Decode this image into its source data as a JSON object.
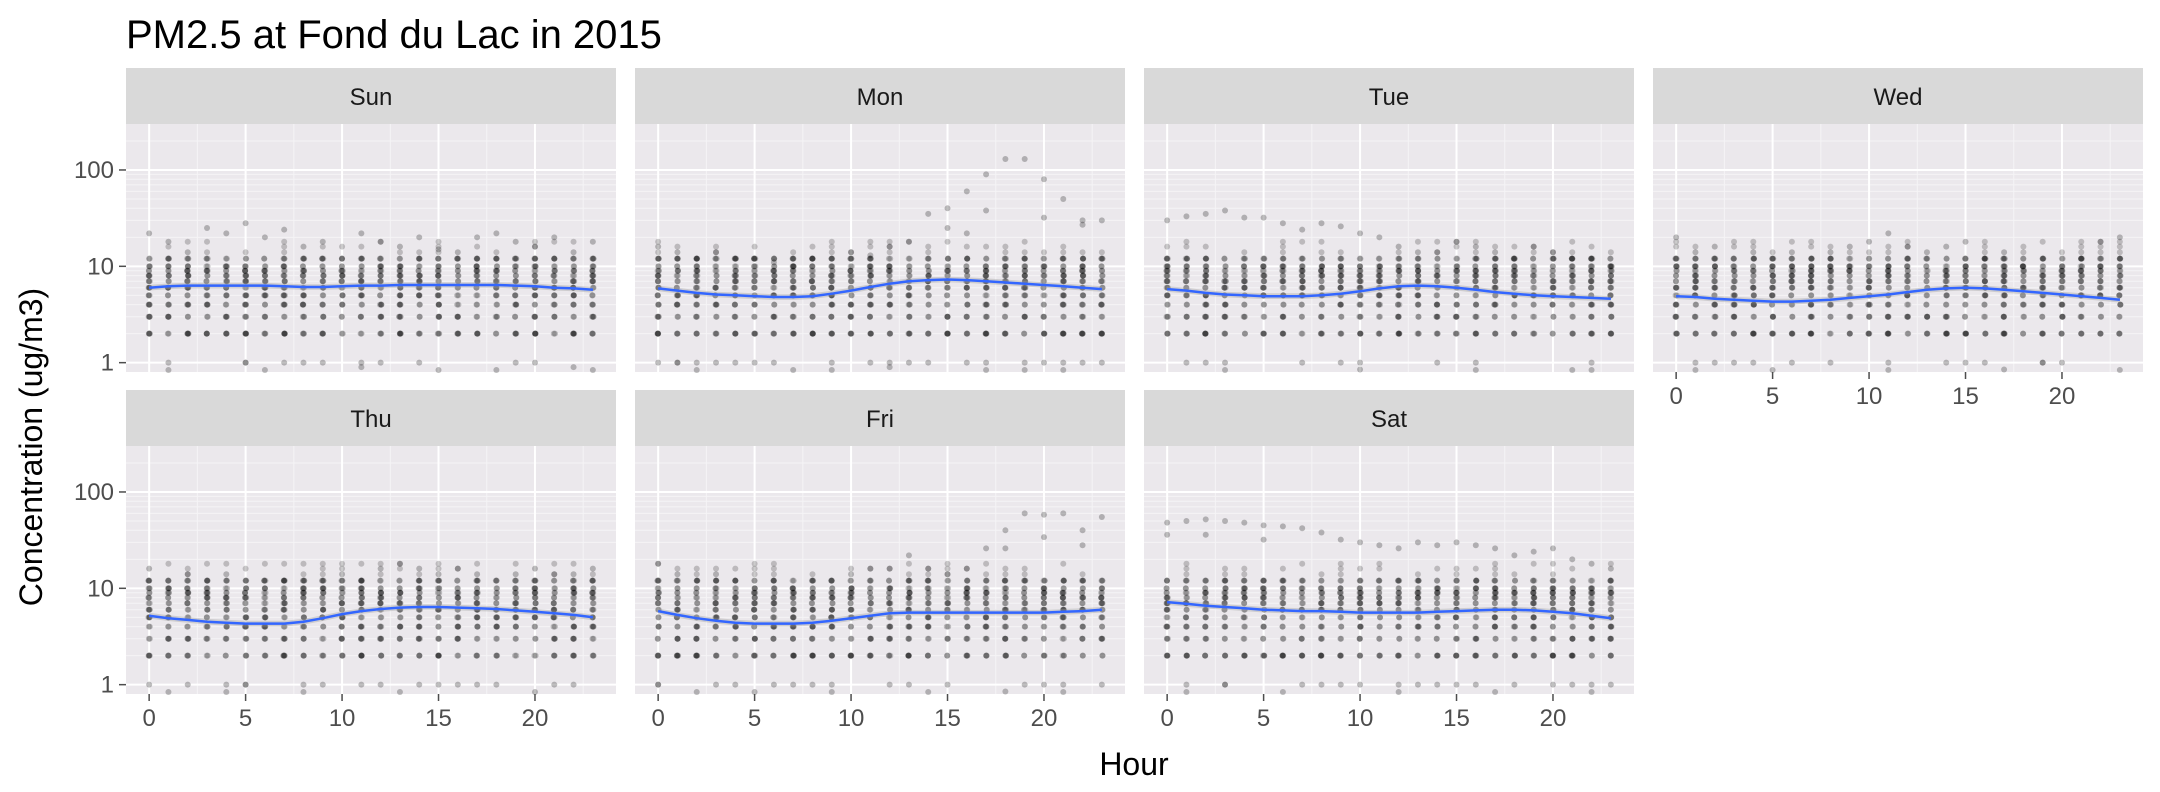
{
  "chart_data": {
    "type": "scatter",
    "title": "PM2.5 at Fond du Lac in 2015",
    "xlabel": "Hour",
    "ylabel": "Concentration (ug/m3)",
    "x_scale": "linear",
    "y_scale": "log10",
    "xlim": [
      -1.2,
      24.2
    ],
    "ylim": [
      0.8,
      300
    ],
    "x_ticks": [
      0,
      5,
      10,
      15,
      20
    ],
    "y_ticks": [
      1,
      10,
      100
    ],
    "grid": true,
    "layout": "facet_wrap, 4 columns",
    "panels": [
      {
        "label": "Sun",
        "smooth_y": [
          6.0,
          6.2,
          6.3,
          6.3,
          6.3,
          6.3,
          6.3,
          6.2,
          6.1,
          6.1,
          6.2,
          6.3,
          6.3,
          6.4,
          6.4,
          6.4,
          6.4,
          6.4,
          6.4,
          6.3,
          6.2,
          6.0,
          5.9,
          5.7
        ],
        "sparse_points": [
          [
            0,
            22
          ],
          [
            1,
            18
          ],
          [
            2,
            14
          ],
          [
            3,
            25
          ],
          [
            4,
            22
          ],
          [
            5,
            28
          ],
          [
            6,
            20
          ],
          [
            7,
            24
          ],
          [
            8,
            16
          ],
          [
            9,
            18
          ],
          [
            10,
            12
          ],
          [
            11,
            22
          ],
          [
            12,
            18
          ],
          [
            13,
            16
          ],
          [
            14,
            20
          ],
          [
            15,
            15
          ],
          [
            16,
            14
          ],
          [
            17,
            20
          ],
          [
            18,
            22
          ],
          [
            19,
            18
          ],
          [
            20,
            16
          ],
          [
            21,
            20
          ],
          [
            22,
            14
          ],
          [
            23,
            18
          ],
          [
            1,
            0.78
          ],
          [
            6,
            0.8
          ],
          [
            11,
            0.9
          ],
          [
            15,
            0.78
          ],
          [
            18,
            0.8
          ],
          [
            22,
            0.9
          ],
          [
            23,
            0.78
          ],
          [
            5,
            1
          ],
          [
            14,
            1
          ]
        ]
      },
      {
        "label": "Mon",
        "smooth_y": [
          5.9,
          5.6,
          5.3,
          5.1,
          5.0,
          4.9,
          4.8,
          4.8,
          4.9,
          5.2,
          5.6,
          6.1,
          6.6,
          7.0,
          7.2,
          7.3,
          7.2,
          7.0,
          6.8,
          6.6,
          6.4,
          6.2,
          6.0,
          5.8
        ],
        "sparse_points": [
          [
            0,
            16
          ],
          [
            1,
            14
          ],
          [
            2,
            12
          ],
          [
            3,
            14
          ],
          [
            4,
            12
          ],
          [
            5,
            12
          ],
          [
            6,
            11
          ],
          [
            7,
            10
          ],
          [
            8,
            12
          ],
          [
            9,
            10
          ],
          [
            10,
            14
          ],
          [
            11,
            13
          ],
          [
            12,
            16
          ],
          [
            13,
            18
          ],
          [
            14,
            35
          ],
          [
            15,
            40
          ],
          [
            16,
            60
          ],
          [
            17,
            90
          ],
          [
            18,
            130
          ],
          [
            19,
            130
          ],
          [
            20,
            80
          ],
          [
            21,
            50
          ],
          [
            22,
            30
          ],
          [
            23,
            30
          ],
          [
            16,
            22
          ],
          [
            17,
            38
          ],
          [
            20,
            32
          ],
          [
            22,
            27
          ],
          [
            15,
            25
          ],
          [
            2,
            0.8
          ],
          [
            7,
            0.8
          ],
          [
            9,
            0.78
          ],
          [
            17,
            0.8
          ],
          [
            19,
            0.78
          ],
          [
            21,
            0.8
          ],
          [
            1,
            1
          ],
          [
            12,
            0.9
          ]
        ]
      },
      {
        "label": "Tue",
        "smooth_y": [
          5.8,
          5.6,
          5.3,
          5.1,
          5.0,
          4.9,
          4.9,
          4.9,
          5.0,
          5.2,
          5.5,
          5.9,
          6.2,
          6.3,
          6.2,
          6.0,
          5.7,
          5.4,
          5.2,
          5.0,
          4.9,
          4.8,
          4.7,
          4.6
        ],
        "sparse_points": [
          [
            0,
            30
          ],
          [
            1,
            33
          ],
          [
            2,
            35
          ],
          [
            3,
            38
          ],
          [
            4,
            32
          ],
          [
            5,
            32
          ],
          [
            6,
            28
          ],
          [
            7,
            24
          ],
          [
            8,
            28
          ],
          [
            9,
            26
          ],
          [
            10,
            22
          ],
          [
            11,
            20
          ],
          [
            12,
            16
          ],
          [
            13,
            14
          ],
          [
            14,
            14
          ],
          [
            15,
            18
          ],
          [
            16,
            16
          ],
          [
            17,
            14
          ],
          [
            18,
            12
          ],
          [
            19,
            16
          ],
          [
            20,
            14
          ],
          [
            21,
            12
          ],
          [
            22,
            12
          ],
          [
            23,
            10
          ],
          [
            3,
            0.8
          ],
          [
            10,
            0.85
          ],
          [
            16,
            0.78
          ],
          [
            21,
            0.8
          ],
          [
            22,
            0.78
          ],
          [
            7,
            1
          ]
        ]
      },
      {
        "label": "Wed",
        "smooth_y": [
          4.9,
          4.8,
          4.6,
          4.5,
          4.4,
          4.3,
          4.3,
          4.4,
          4.5,
          4.7,
          4.9,
          5.1,
          5.4,
          5.7,
          5.9,
          6.0,
          5.9,
          5.7,
          5.5,
          5.3,
          5.1,
          4.9,
          4.7,
          4.5
        ],
        "sparse_points": [
          [
            0,
            20
          ],
          [
            1,
            14
          ],
          [
            2,
            16
          ],
          [
            3,
            12
          ],
          [
            4,
            14
          ],
          [
            5,
            12
          ],
          [
            6,
            14
          ],
          [
            7,
            12
          ],
          [
            8,
            14
          ],
          [
            9,
            16
          ],
          [
            10,
            18
          ],
          [
            11,
            22
          ],
          [
            12,
            16
          ],
          [
            13,
            14
          ],
          [
            14,
            16
          ],
          [
            15,
            18
          ],
          [
            16,
            12
          ],
          [
            17,
            14
          ],
          [
            18,
            10
          ],
          [
            19,
            12
          ],
          [
            20,
            10
          ],
          [
            21,
            12
          ],
          [
            22,
            18
          ],
          [
            23,
            20
          ],
          [
            1,
            0.8
          ],
          [
            5,
            0.78
          ],
          [
            11,
            0.8
          ],
          [
            17,
            0.85
          ],
          [
            23,
            0.78
          ],
          [
            4,
            1
          ],
          [
            19,
            1
          ]
        ]
      },
      {
        "label": "Thu",
        "smooth_y": [
          5.2,
          4.9,
          4.7,
          4.5,
          4.4,
          4.3,
          4.3,
          4.3,
          4.5,
          4.9,
          5.4,
          5.8,
          6.1,
          6.3,
          6.4,
          6.4,
          6.3,
          6.2,
          6.1,
          5.9,
          5.7,
          5.5,
          5.3,
          5.0
        ],
        "sparse_points": [
          [
            0,
            16
          ],
          [
            1,
            12
          ],
          [
            2,
            14
          ],
          [
            3,
            12
          ],
          [
            4,
            14
          ],
          [
            5,
            12
          ],
          [
            6,
            10
          ],
          [
            7,
            12
          ],
          [
            8,
            12
          ],
          [
            9,
            10
          ],
          [
            10,
            14
          ],
          [
            11,
            12
          ],
          [
            12,
            16
          ],
          [
            13,
            18
          ],
          [
            14,
            16
          ],
          [
            15,
            14
          ],
          [
            16,
            16
          ],
          [
            17,
            14
          ],
          [
            18,
            12
          ],
          [
            19,
            14
          ],
          [
            20,
            16
          ],
          [
            21,
            14
          ],
          [
            22,
            14
          ],
          [
            23,
            16
          ],
          [
            1,
            0.78
          ],
          [
            4,
            0.8
          ],
          [
            8,
            0.78
          ],
          [
            13,
            0.8
          ],
          [
            20,
            0.78
          ],
          [
            0,
            1
          ],
          [
            5,
            1
          ]
        ]
      },
      {
        "label": "Fri",
        "smooth_y": [
          5.8,
          5.3,
          4.9,
          4.6,
          4.4,
          4.3,
          4.3,
          4.3,
          4.4,
          4.6,
          4.9,
          5.2,
          5.5,
          5.6,
          5.6,
          5.6,
          5.6,
          5.6,
          5.6,
          5.6,
          5.6,
          5.7,
          5.8,
          6.0
        ],
        "sparse_points": [
          [
            0,
            18
          ],
          [
            1,
            14
          ],
          [
            2,
            12
          ],
          [
            3,
            14
          ],
          [
            4,
            12
          ],
          [
            5,
            10
          ],
          [
            6,
            12
          ],
          [
            7,
            10
          ],
          [
            8,
            12
          ],
          [
            9,
            12
          ],
          [
            10,
            14
          ],
          [
            11,
            16
          ],
          [
            12,
            16
          ],
          [
            13,
            22
          ],
          [
            14,
            16
          ],
          [
            15,
            14
          ],
          [
            16,
            16
          ],
          [
            17,
            26
          ],
          [
            18,
            40
          ],
          [
            19,
            60
          ],
          [
            20,
            58
          ],
          [
            21,
            60
          ],
          [
            22,
            40
          ],
          [
            23,
            55
          ],
          [
            20,
            34
          ],
          [
            22,
            28
          ],
          [
            18,
            26
          ],
          [
            2,
            0.78
          ],
          [
            5,
            0.8
          ],
          [
            9,
            0.78
          ],
          [
            14,
            0.8
          ],
          [
            18,
            0.85
          ],
          [
            21,
            0.78
          ],
          [
            0,
            1
          ],
          [
            6,
            1
          ]
        ]
      },
      {
        "label": "Sat",
        "smooth_y": [
          7.2,
          6.9,
          6.6,
          6.4,
          6.2,
          6.0,
          5.9,
          5.8,
          5.8,
          5.7,
          5.6,
          5.6,
          5.6,
          5.6,
          5.7,
          5.8,
          5.9,
          6.0,
          6.0,
          5.9,
          5.7,
          5.5,
          5.2,
          4.9
        ],
        "sparse_points": [
          [
            0,
            48
          ],
          [
            1,
            50
          ],
          [
            2,
            52
          ],
          [
            3,
            50
          ],
          [
            4,
            48
          ],
          [
            5,
            45
          ],
          [
            6,
            44
          ],
          [
            7,
            42
          ],
          [
            8,
            38
          ],
          [
            9,
            32
          ],
          [
            10,
            30
          ],
          [
            11,
            28
          ],
          [
            12,
            26
          ],
          [
            13,
            30
          ],
          [
            14,
            28
          ],
          [
            15,
            30
          ],
          [
            16,
            28
          ],
          [
            17,
            26
          ],
          [
            18,
            22
          ],
          [
            19,
            24
          ],
          [
            20,
            26
          ],
          [
            21,
            20
          ],
          [
            22,
            18
          ],
          [
            23,
            16
          ],
          [
            0,
            36
          ],
          [
            2,
            36
          ],
          [
            5,
            32
          ],
          [
            1,
            0.8
          ],
          [
            6,
            0.78
          ],
          [
            12,
            0.8
          ],
          [
            17,
            0.78
          ],
          [
            22,
            0.8
          ],
          [
            3,
            1
          ]
        ]
      }
    ]
  }
}
